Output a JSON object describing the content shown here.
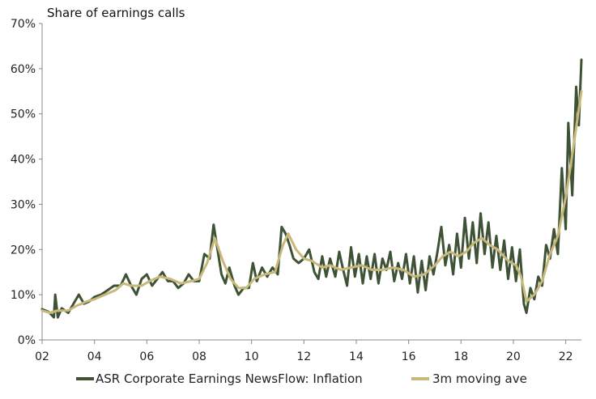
{
  "chart_data": {
    "type": "line",
    "title": "Share of earnings calls",
    "xlabel": "",
    "ylabel": "",
    "x_tick_labels": [
      "02",
      "04",
      "06",
      "08",
      "10",
      "12",
      "14",
      "16",
      "18",
      "20",
      "22"
    ],
    "y_tick_labels": [
      "0%",
      "10%",
      "20%",
      "30%",
      "40%",
      "50%",
      "60%",
      "70%"
    ],
    "xlim": [
      2002.0,
      2022.6
    ],
    "ylim": [
      0,
      70
    ],
    "grid": false,
    "legend_position": "bottom",
    "colors": {
      "series_1": "#3e5235",
      "series_2": "#c8b879"
    },
    "series": [
      {
        "name": "ASR Corporate Earnings NewsFlow: Inflation",
        "points": [
          [
            2002.0,
            6.8
          ],
          [
            2002.25,
            6.2
          ],
          [
            2002.45,
            5.0
          ],
          [
            2002.5,
            10.0
          ],
          [
            2002.6,
            5.0
          ],
          [
            2002.75,
            7.0
          ],
          [
            2003.0,
            6.0
          ],
          [
            2003.25,
            8.5
          ],
          [
            2003.4,
            10.0
          ],
          [
            2003.6,
            8.0
          ],
          [
            2003.8,
            8.5
          ],
          [
            2004.0,
            9.5
          ],
          [
            2004.25,
            10.0
          ],
          [
            2004.5,
            11.0
          ],
          [
            2004.75,
            12.0
          ],
          [
            2005.0,
            12.0
          ],
          [
            2005.2,
            14.5
          ],
          [
            2005.4,
            12.0
          ],
          [
            2005.6,
            10.0
          ],
          [
            2005.8,
            13.5
          ],
          [
            2006.0,
            14.5
          ],
          [
            2006.2,
            12.0
          ],
          [
            2006.4,
            13.5
          ],
          [
            2006.6,
            15.0
          ],
          [
            2006.8,
            13.0
          ],
          [
            2007.0,
            13.0
          ],
          [
            2007.2,
            11.5
          ],
          [
            2007.4,
            12.5
          ],
          [
            2007.6,
            14.5
          ],
          [
            2007.8,
            13.0
          ],
          [
            2008.0,
            13.0
          ],
          [
            2008.2,
            19.0
          ],
          [
            2008.4,
            18.0
          ],
          [
            2008.55,
            25.5
          ],
          [
            2008.7,
            20.0
          ],
          [
            2008.85,
            14.5
          ],
          [
            2009.0,
            12.5
          ],
          [
            2009.15,
            16.0
          ],
          [
            2009.35,
            12.0
          ],
          [
            2009.5,
            10.0
          ],
          [
            2009.7,
            11.5
          ],
          [
            2009.9,
            11.5
          ],
          [
            2010.05,
            17.0
          ],
          [
            2010.2,
            13.0
          ],
          [
            2010.4,
            16.0
          ],
          [
            2010.6,
            14.0
          ],
          [
            2010.8,
            16.0
          ],
          [
            2011.0,
            14.5
          ],
          [
            2011.15,
            25.0
          ],
          [
            2011.3,
            23.5
          ],
          [
            2011.45,
            21.0
          ],
          [
            2011.6,
            18.0
          ],
          [
            2011.8,
            17.0
          ],
          [
            2012.0,
            18.0
          ],
          [
            2012.2,
            20.0
          ],
          [
            2012.4,
            15.0
          ],
          [
            2012.55,
            13.5
          ],
          [
            2012.7,
            18.5
          ],
          [
            2012.85,
            14.0
          ],
          [
            2013.0,
            18.0
          ],
          [
            2013.2,
            14.0
          ],
          [
            2013.35,
            19.5
          ],
          [
            2013.5,
            15.5
          ],
          [
            2013.65,
            12.0
          ],
          [
            2013.8,
            20.5
          ],
          [
            2013.95,
            14.0
          ],
          [
            2014.1,
            19.0
          ],
          [
            2014.25,
            12.5
          ],
          [
            2014.4,
            18.5
          ],
          [
            2014.55,
            13.5
          ],
          [
            2014.7,
            19.0
          ],
          [
            2014.85,
            12.5
          ],
          [
            2015.0,
            18.0
          ],
          [
            2015.15,
            15.5
          ],
          [
            2015.3,
            19.5
          ],
          [
            2015.45,
            13.0
          ],
          [
            2015.6,
            17.0
          ],
          [
            2015.75,
            13.5
          ],
          [
            2015.9,
            19.0
          ],
          [
            2016.05,
            12.5
          ],
          [
            2016.2,
            18.5
          ],
          [
            2016.35,
            10.5
          ],
          [
            2016.5,
            17.5
          ],
          [
            2016.65,
            11.0
          ],
          [
            2016.8,
            18.5
          ],
          [
            2016.95,
            14.5
          ],
          [
            2017.1,
            19.5
          ],
          [
            2017.25,
            25.0
          ],
          [
            2017.4,
            16.5
          ],
          [
            2017.55,
            21.0
          ],
          [
            2017.7,
            14.5
          ],
          [
            2017.85,
            23.5
          ],
          [
            2018.0,
            16.0
          ],
          [
            2018.15,
            27.0
          ],
          [
            2018.3,
            18.0
          ],
          [
            2018.45,
            26.0
          ],
          [
            2018.6,
            17.0
          ],
          [
            2018.75,
            28.0
          ],
          [
            2018.9,
            19.0
          ],
          [
            2019.05,
            26.0
          ],
          [
            2019.2,
            16.0
          ],
          [
            2019.35,
            23.0
          ],
          [
            2019.5,
            15.5
          ],
          [
            2019.65,
            22.0
          ],
          [
            2019.8,
            13.5
          ],
          [
            2019.95,
            20.5
          ],
          [
            2020.1,
            13.0
          ],
          [
            2020.25,
            20.0
          ],
          [
            2020.4,
            8.0
          ],
          [
            2020.5,
            6.0
          ],
          [
            2020.65,
            11.5
          ],
          [
            2020.8,
            9.0
          ],
          [
            2020.95,
            14.0
          ],
          [
            2021.1,
            12.0
          ],
          [
            2021.25,
            21.0
          ],
          [
            2021.4,
            18.0
          ],
          [
            2021.55,
            24.5
          ],
          [
            2021.7,
            19.0
          ],
          [
            2021.85,
            38.0
          ],
          [
            2022.0,
            24.5
          ],
          [
            2022.1,
            48.0
          ],
          [
            2022.25,
            32.0
          ],
          [
            2022.4,
            56.0
          ],
          [
            2022.5,
            47.5
          ],
          [
            2022.6,
            62.0
          ]
        ]
      },
      {
        "name": "3m moving ave",
        "points": [
          [
            2002.0,
            6.5
          ],
          [
            2002.3,
            6.0
          ],
          [
            2002.6,
            6.5
          ],
          [
            2003.0,
            6.5
          ],
          [
            2003.3,
            7.5
          ],
          [
            2003.7,
            8.5
          ],
          [
            2004.0,
            9.0
          ],
          [
            2004.4,
            10.0
          ],
          [
            2004.8,
            11.0
          ],
          [
            2005.1,
            12.5
          ],
          [
            2005.4,
            12.0
          ],
          [
            2005.8,
            12.0
          ],
          [
            2006.1,
            13.0
          ],
          [
            2006.5,
            14.0
          ],
          [
            2006.9,
            13.5
          ],
          [
            2007.3,
            12.5
          ],
          [
            2007.7,
            13.0
          ],
          [
            2008.0,
            13.5
          ],
          [
            2008.3,
            17.0
          ],
          [
            2008.6,
            22.5
          ],
          [
            2008.9,
            17.5
          ],
          [
            2009.2,
            13.5
          ],
          [
            2009.5,
            11.5
          ],
          [
            2009.8,
            11.5
          ],
          [
            2010.1,
            13.5
          ],
          [
            2010.5,
            14.5
          ],
          [
            2010.9,
            15.0
          ],
          [
            2011.2,
            21.0
          ],
          [
            2011.4,
            23.5
          ],
          [
            2011.7,
            20.0
          ],
          [
            2012.0,
            18.0
          ],
          [
            2012.3,
            17.5
          ],
          [
            2012.7,
            16.0
          ],
          [
            2013.0,
            16.5
          ],
          [
            2013.4,
            15.5
          ],
          [
            2013.8,
            16.0
          ],
          [
            2014.2,
            16.5
          ],
          [
            2014.6,
            15.5
          ],
          [
            2015.0,
            15.5
          ],
          [
            2015.4,
            16.0
          ],
          [
            2015.8,
            15.5
          ],
          [
            2016.2,
            14.0
          ],
          [
            2016.6,
            14.5
          ],
          [
            2017.0,
            16.5
          ],
          [
            2017.3,
            18.5
          ],
          [
            2017.6,
            19.5
          ],
          [
            2017.9,
            18.5
          ],
          [
            2018.2,
            19.5
          ],
          [
            2018.5,
            21.5
          ],
          [
            2018.8,
            22.5
          ],
          [
            2019.1,
            21.0
          ],
          [
            2019.4,
            20.0
          ],
          [
            2019.8,
            17.5
          ],
          [
            2020.1,
            16.5
          ],
          [
            2020.3,
            14.0
          ],
          [
            2020.5,
            8.5
          ],
          [
            2020.8,
            10.0
          ],
          [
            2021.1,
            13.0
          ],
          [
            2021.4,
            19.0
          ],
          [
            2021.7,
            23.0
          ],
          [
            2022.0,
            31.5
          ],
          [
            2022.2,
            39.0
          ],
          [
            2022.4,
            47.0
          ],
          [
            2022.6,
            55.0
          ]
        ]
      }
    ]
  }
}
